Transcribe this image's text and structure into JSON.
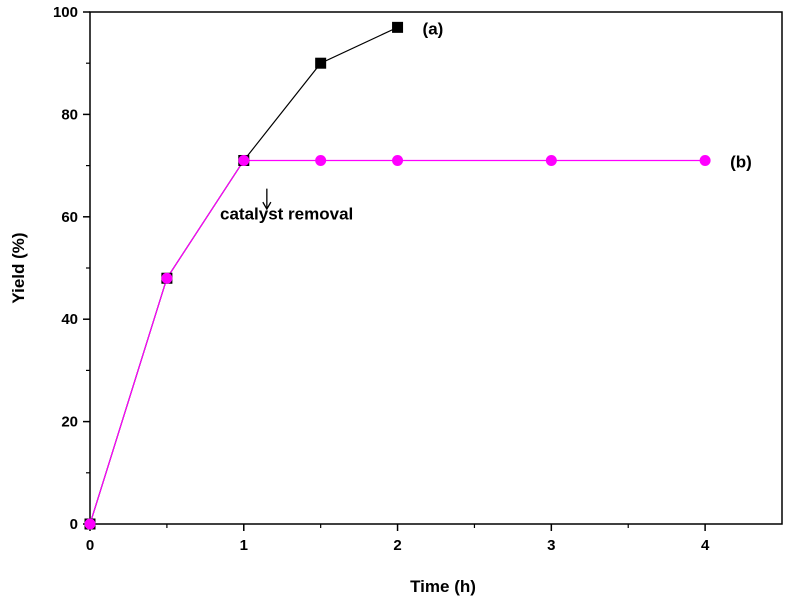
{
  "chart_data": {
    "type": "line",
    "xlabel": "Time (h)",
    "ylabel": "Yield (%)",
    "xlim": [
      0,
      4.5
    ],
    "ylim": [
      0,
      100
    ],
    "xticks": [
      0,
      1,
      2,
      3,
      4
    ],
    "yticks": [
      0,
      20,
      40,
      60,
      80,
      100
    ],
    "grid": false,
    "series": [
      {
        "name": "(a)",
        "color": "#000000",
        "marker": "square",
        "x": [
          0,
          0.5,
          1,
          1.5,
          2
        ],
        "y": [
          0,
          48,
          71,
          90,
          97
        ]
      },
      {
        "name": "(b)",
        "color": "#ff00ff",
        "marker": "circle",
        "x": [
          0,
          0.5,
          1,
          1.5,
          2,
          3,
          4
        ],
        "y": [
          0,
          48,
          71,
          71,
          71,
          71,
          71
        ]
      }
    ],
    "annotations": [
      {
        "text": "catalyst removal",
        "x": 1.15,
        "y": 64
      }
    ]
  }
}
